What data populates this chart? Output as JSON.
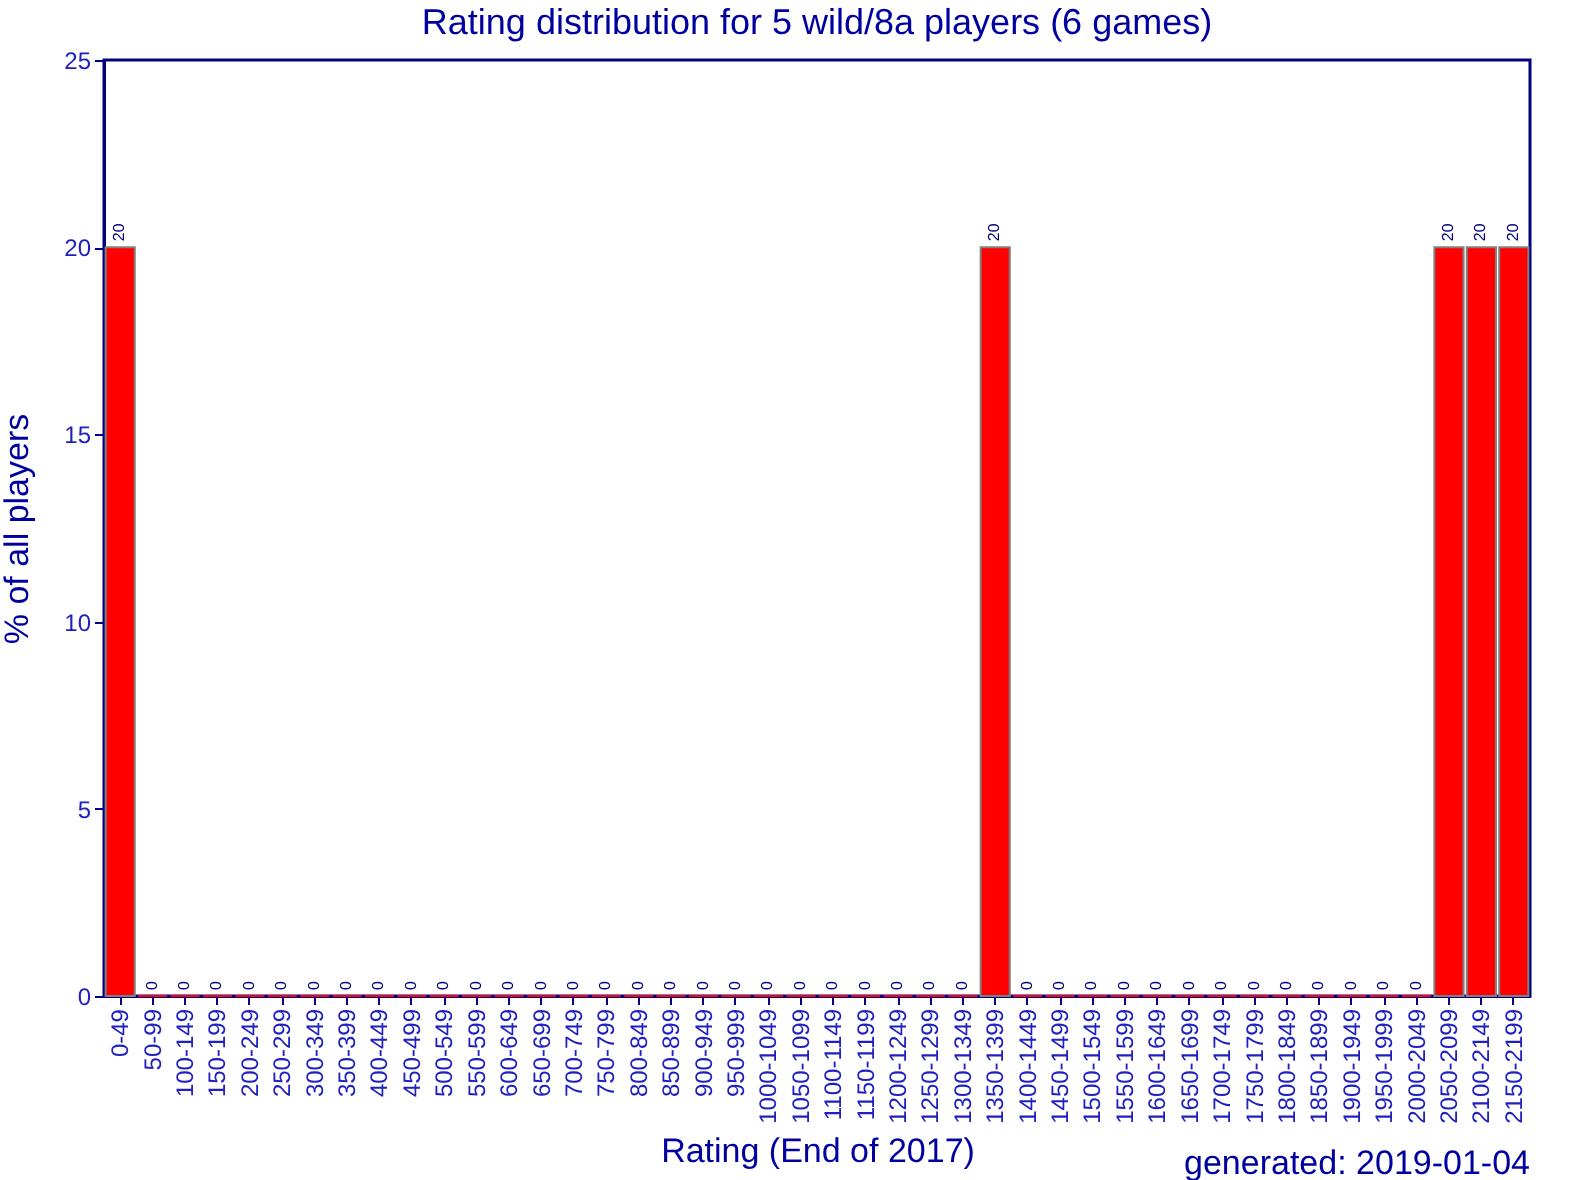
{
  "chart_data": {
    "type": "bar",
    "title": "Rating distribution for 5 wild/8a players (6 games)",
    "xlabel": "Rating (End of 2017)",
    "ylabel": "% of all players",
    "categories": [
      "0-49",
      "50-99",
      "100-149",
      "150-199",
      "200-249",
      "250-299",
      "300-349",
      "350-399",
      "400-449",
      "450-499",
      "500-549",
      "550-599",
      "600-649",
      "650-699",
      "700-749",
      "750-799",
      "800-849",
      "850-899",
      "900-949",
      "950-999",
      "1000-1049",
      "1050-1099",
      "1100-1149",
      "1150-1199",
      "1200-1249",
      "1250-1299",
      "1300-1349",
      "1350-1399",
      "1400-1449",
      "1450-1499",
      "1500-1549",
      "1550-1599",
      "1600-1649",
      "1650-1699",
      "1700-1749",
      "1750-1799",
      "1800-1849",
      "1850-1899",
      "1900-1949",
      "1950-1999",
      "2000-2049",
      "2050-2099",
      "2100-2149",
      "2150-2199"
    ],
    "values": [
      20,
      0,
      0,
      0,
      0,
      0,
      0,
      0,
      0,
      0,
      0,
      0,
      0,
      0,
      0,
      0,
      0,
      0,
      0,
      0,
      0,
      0,
      0,
      0,
      0,
      0,
      0,
      20,
      0,
      0,
      0,
      0,
      0,
      0,
      0,
      0,
      0,
      0,
      0,
      0,
      0,
      20,
      20,
      20
    ],
    "color": "#ff0000",
    "ylim": [
      0,
      25
    ],
    "yticks": [
      0,
      5,
      10,
      15,
      20,
      25
    ],
    "grid": false,
    "data_labels": true,
    "annotations": [
      "generated: 2019-01-04"
    ]
  }
}
